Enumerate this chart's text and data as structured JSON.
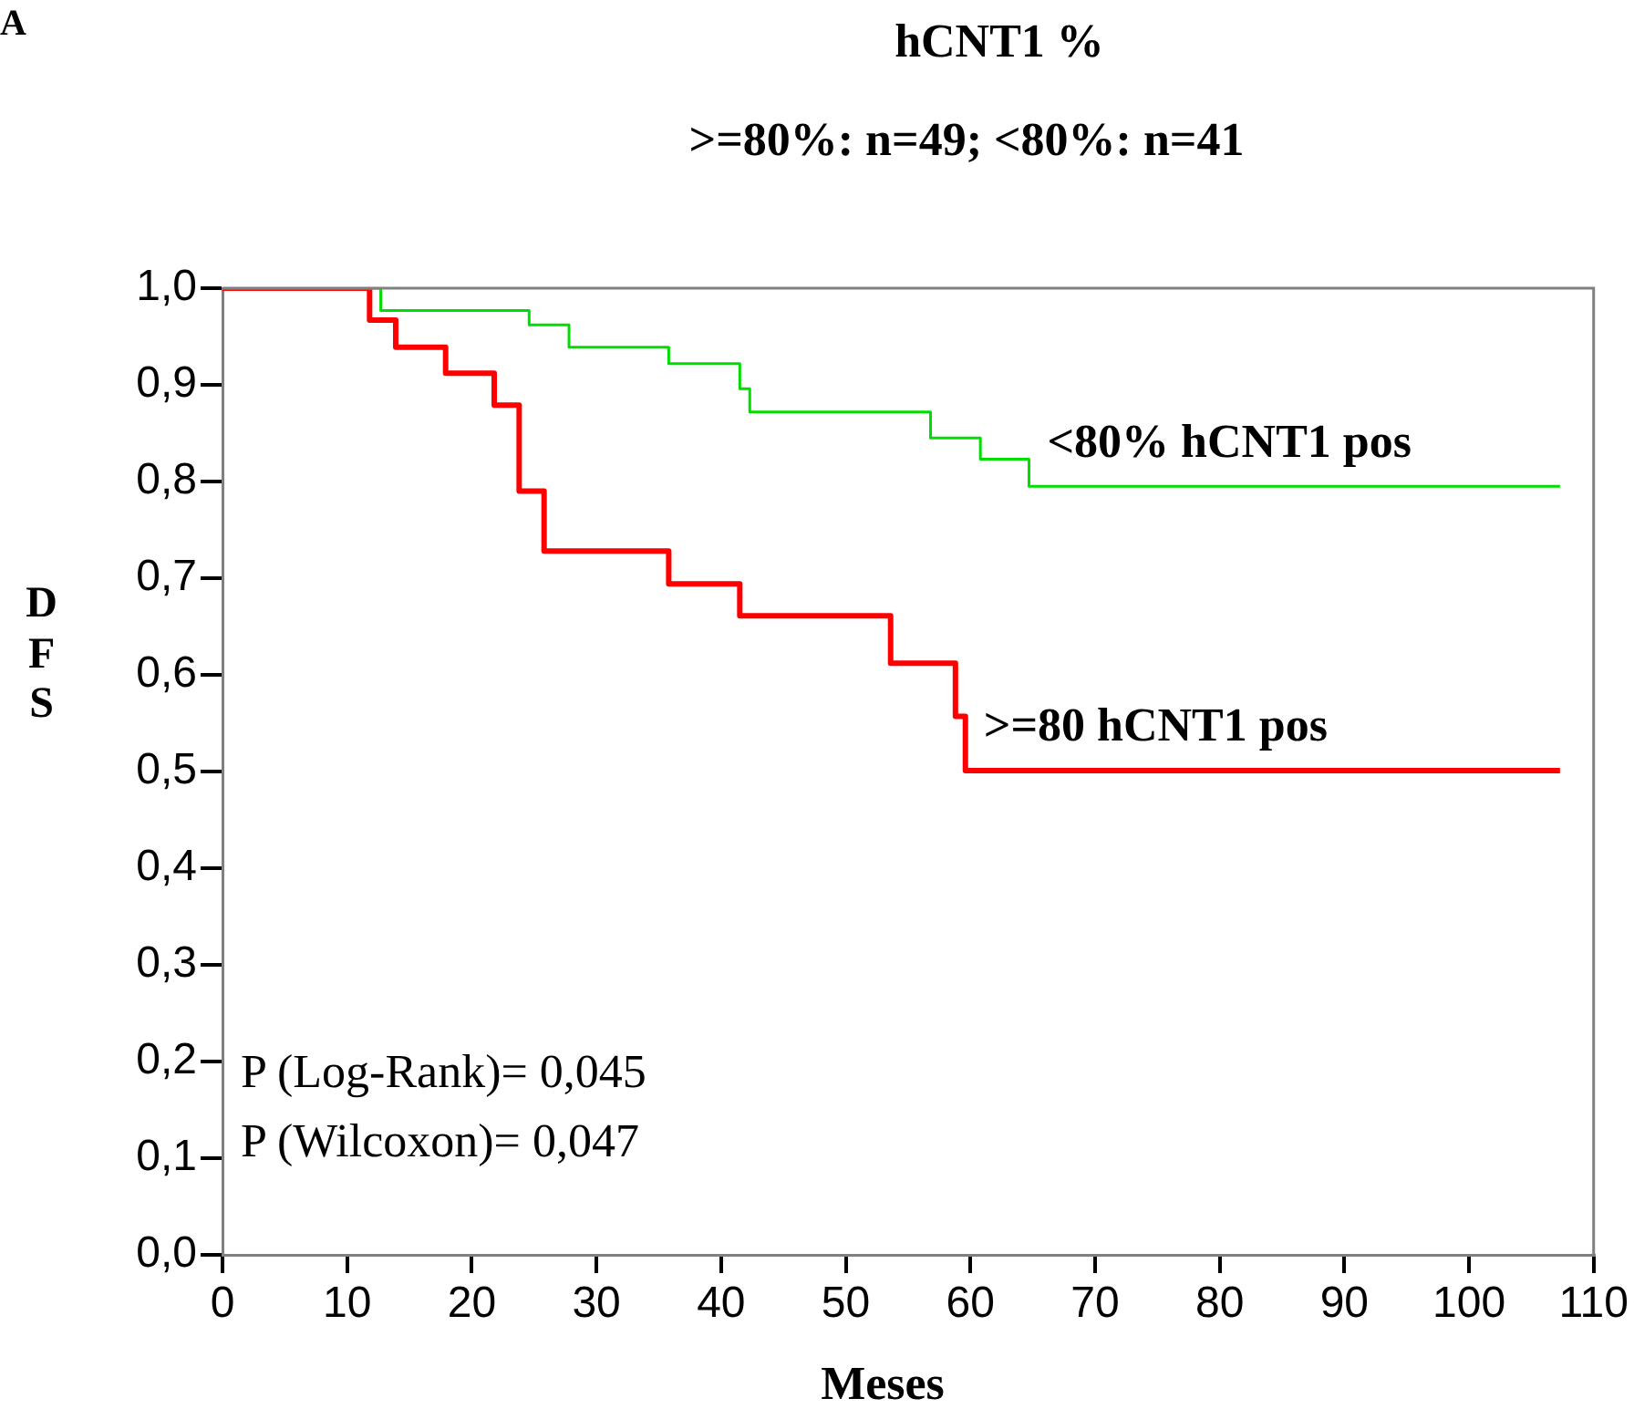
{
  "chart_data": {
    "type": "step",
    "title": "hCNT1 %",
    "subtitle": ">=80%: n=49; <80%: n=41",
    "xlabel": "Meses",
    "ylabel": "DFS",
    "annotations": [
      "A",
      "P (Log-Rank)= 0,045",
      "P (Wilcoxon)= 0,047"
    ],
    "series": [
      {
        "name": "<80% hCNT1 pos",
        "color": "#00dd00",
        "x": [
          0,
          12.7,
          24.6,
          27.8,
          35.8,
          41.5,
          42.3,
          56.8,
          60.8,
          64.7,
          107.3
        ],
        "values": [
          1,
          0.977,
          0.962,
          0.939,
          0.922,
          0.896,
          0.872,
          0.845,
          0.823,
          0.795,
          0.795
        ]
      },
      {
        "name": ">=80 hCNT1 pos",
        "color": "#ff0000",
        "x": [
          0,
          11.8,
          13.9,
          17.9,
          21.8,
          23.8,
          25.8,
          35.8,
          41.5,
          53.6,
          58.8,
          59.6,
          107.3
        ],
        "values": [
          1,
          0.967,
          0.939,
          0.912,
          0.879,
          0.79,
          0.728,
          0.694,
          0.661,
          0.612,
          0.557,
          0.501,
          0.501
        ]
      }
    ],
    "xlim": [
      0,
      110
    ],
    "xticks": [
      0,
      10,
      20,
      30,
      40,
      50,
      60,
      70,
      80,
      90,
      100,
      110
    ],
    "ylim": [
      0,
      1
    ],
    "yticks": [
      {
        "value": 0,
        "label": "0,0"
      },
      {
        "value": 0.1,
        "label": "0,1"
      },
      {
        "value": 0.2,
        "label": "0,2"
      },
      {
        "value": 0.3,
        "label": "0,3"
      },
      {
        "value": 0.4,
        "label": "0,4"
      },
      {
        "value": 0.5,
        "label": "0,5"
      },
      {
        "value": 0.6,
        "label": "0,6"
      },
      {
        "value": 0.7,
        "label": "0,7"
      },
      {
        "value": 0.8,
        "label": "0,8"
      },
      {
        "value": 0.9,
        "label": "0,9"
      },
      {
        "value": 1,
        "label": "1,0"
      }
    ],
    "grid": false,
    "legend": false,
    "marker": "none",
    "line_style": "solid"
  }
}
